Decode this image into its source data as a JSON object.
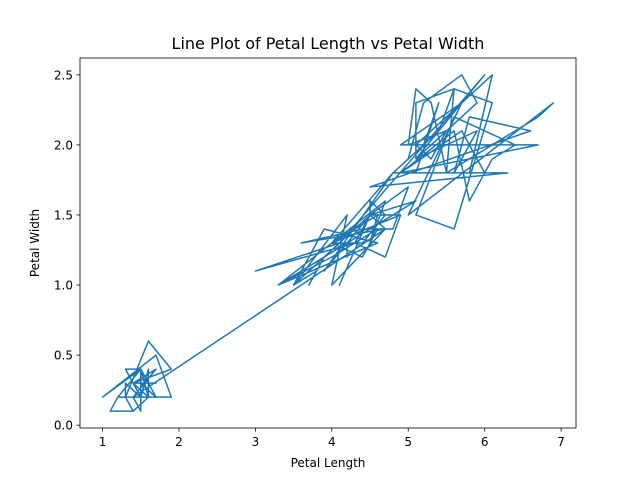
{
  "chart_data": {
    "type": "line",
    "title": "Line Plot of Petal Length vs Petal Width",
    "xlabel": "Petal Length",
    "ylabel": "Petal Width",
    "xlim": [
      0.705,
      7.195
    ],
    "ylim": [
      -0.02,
      2.62
    ],
    "x_ticks": [
      1,
      2,
      3,
      4,
      5,
      6,
      7
    ],
    "x_tick_labels": [
      "1",
      "2",
      "3",
      "4",
      "5",
      "6",
      "7"
    ],
    "y_ticks": [
      0.0,
      0.5,
      1.0,
      1.5,
      2.0,
      2.5
    ],
    "y_tick_labels": [
      "0.0",
      "0.5",
      "1.0",
      "1.5",
      "2.0",
      "2.5"
    ],
    "grid": false,
    "series": [
      {
        "color": "#1f77b4",
        "x": [
          1.4,
          1.4,
          1.3,
          1.5,
          1.4,
          1.7,
          1.4,
          1.5,
          1.4,
          1.5,
          1.5,
          1.6,
          1.4,
          1.1,
          1.2,
          1.5,
          1.3,
          1.4,
          1.7,
          1.5,
          1.7,
          1.5,
          1.0,
          1.7,
          1.9,
          1.6,
          1.6,
          1.5,
          1.4,
          1.6,
          1.6,
          1.5,
          1.5,
          1.4,
          1.5,
          1.2,
          1.3,
          1.4,
          1.3,
          1.5,
          1.3,
          1.3,
          1.3,
          1.6,
          1.9,
          1.4,
          1.6,
          1.4,
          1.5,
          1.4,
          4.7,
          4.5,
          4.9,
          4.0,
          4.6,
          4.5,
          4.7,
          3.3,
          4.6,
          3.9,
          3.5,
          4.2,
          4.0,
          4.7,
          3.6,
          4.4,
          4.5,
          4.1,
          4.5,
          3.9,
          4.8,
          4.0,
          4.9,
          4.7,
          4.3,
          4.4,
          4.8,
          5.0,
          4.5,
          3.5,
          3.8,
          3.7,
          3.9,
          5.1,
          4.5,
          4.5,
          4.7,
          4.4,
          4.1,
          4.0,
          4.4,
          4.6,
          4.0,
          3.3,
          4.2,
          4.2,
          4.2,
          4.3,
          3.0,
          4.1,
          6.0,
          5.1,
          5.9,
          5.6,
          5.8,
          6.6,
          4.5,
          6.3,
          5.8,
          6.1,
          5.1,
          5.3,
          5.5,
          5.0,
          5.1,
          5.3,
          5.5,
          6.7,
          6.9,
          5.0,
          5.7,
          4.9,
          6.7,
          4.9,
          5.7,
          6.0,
          4.8,
          4.9,
          5.6,
          5.8,
          6.1,
          6.4,
          5.6,
          5.1,
          5.6,
          6.1,
          5.6,
          5.5,
          4.8,
          5.4,
          5.6,
          5.1,
          5.1,
          5.9,
          5.7,
          5.2,
          5.0,
          5.2,
          5.4,
          5.1
        ],
        "y": [
          0.2,
          0.2,
          0.2,
          0.2,
          0.2,
          0.4,
          0.3,
          0.2,
          0.2,
          0.1,
          0.2,
          0.2,
          0.1,
          0.1,
          0.2,
          0.4,
          0.4,
          0.3,
          0.3,
          0.3,
          0.2,
          0.4,
          0.2,
          0.5,
          0.2,
          0.2,
          0.4,
          0.2,
          0.2,
          0.2,
          0.2,
          0.4,
          0.1,
          0.2,
          0.2,
          0.2,
          0.2,
          0.1,
          0.2,
          0.2,
          0.3,
          0.3,
          0.2,
          0.6,
          0.4,
          0.3,
          0.2,
          0.2,
          0.2,
          0.2,
          1.4,
          1.5,
          1.5,
          1.3,
          1.5,
          1.3,
          1.6,
          1.0,
          1.3,
          1.4,
          1.0,
          1.5,
          1.0,
          1.4,
          1.3,
          1.4,
          1.5,
          1.0,
          1.5,
          1.1,
          1.8,
          1.3,
          1.5,
          1.2,
          1.3,
          1.4,
          1.4,
          1.7,
          1.5,
          1.0,
          1.1,
          1.0,
          1.2,
          1.6,
          1.5,
          1.6,
          1.5,
          1.3,
          1.3,
          1.3,
          1.2,
          1.4,
          1.2,
          1.0,
          1.3,
          1.2,
          1.3,
          1.3,
          1.1,
          1.3,
          2.5,
          1.9,
          2.1,
          1.8,
          2.2,
          2.1,
          1.7,
          1.8,
          1.8,
          2.5,
          2.0,
          1.9,
          2.1,
          2.0,
          2.4,
          2.3,
          1.8,
          2.2,
          2.3,
          1.5,
          2.3,
          2.0,
          2.0,
          1.8,
          2.1,
          1.8,
          1.8,
          1.8,
          2.1,
          1.6,
          1.9,
          2.0,
          2.2,
          1.5,
          1.4,
          2.3,
          2.4,
          1.8,
          1.8,
          2.1,
          2.4,
          2.3,
          1.9,
          2.3,
          2.5,
          2.3,
          1.9,
          2.0,
          2.3,
          1.8
        ]
      }
    ]
  }
}
